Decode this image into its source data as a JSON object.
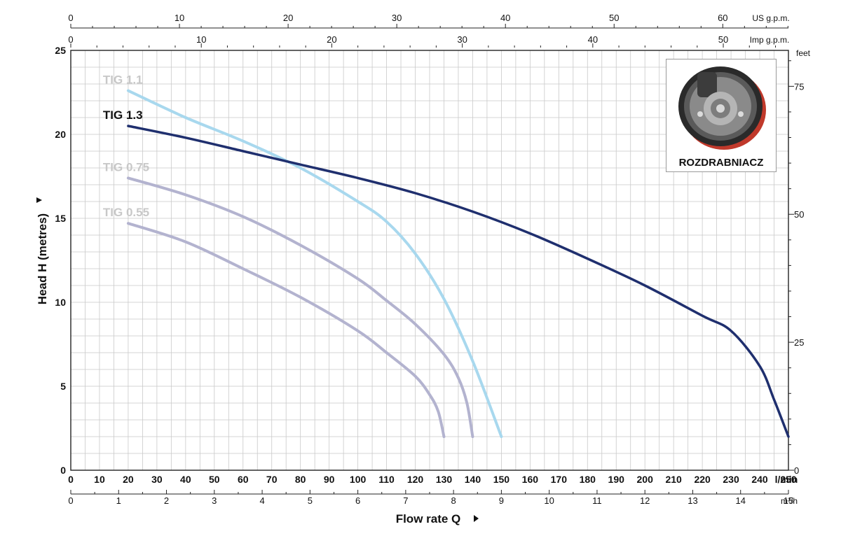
{
  "chart_data": {
    "type": "line",
    "title": "",
    "xlabel": "Flow rate Q",
    "ylabel": "Head H (metres)",
    "xlim": [
      0,
      250
    ],
    "ylim": [
      0,
      25
    ],
    "x_unit": "l/min",
    "x_ticks": [
      0,
      10,
      20,
      30,
      40,
      50,
      60,
      70,
      80,
      90,
      100,
      110,
      120,
      130,
      140,
      150,
      160,
      170,
      180,
      190,
      200,
      210,
      220,
      230,
      240,
      250
    ],
    "y_ticks": [
      0,
      5,
      10,
      15,
      20,
      25
    ],
    "secondary_axes": {
      "m3h": {
        "unit": "m³/h",
        "ticks": [
          0,
          1,
          2,
          3,
          4,
          5,
          6,
          7,
          8,
          9,
          10,
          11,
          12,
          13,
          14,
          15
        ]
      },
      "us_gpm": {
        "unit": "US g.p.m.",
        "ticks": [
          0,
          10,
          20,
          30,
          40,
          50,
          60
        ]
      },
      "imp_gpm": {
        "unit": "Imp g.p.m.",
        "ticks": [
          0,
          10,
          20,
          30,
          40,
          50
        ]
      },
      "feet": {
        "unit": "feet",
        "ticks": [
          0,
          25,
          50,
          75
        ]
      }
    },
    "grid": true,
    "series": [
      {
        "name": "TIG 1.1",
        "color": "#a8d8ee",
        "x": [
          20,
          40,
          60,
          80,
          100,
          110,
          120,
          130,
          140,
          150
        ],
        "y": [
          22.6,
          21.0,
          19.6,
          18.0,
          16.0,
          14.8,
          12.9,
          10.2,
          6.5,
          2.0
        ]
      },
      {
        "name": "TIG 1.3",
        "color": "#1f2f6e",
        "x": [
          20,
          40,
          60,
          80,
          100,
          120,
          140,
          160,
          180,
          200,
          220,
          230,
          240,
          245,
          250
        ],
        "y": [
          20.5,
          19.8,
          19.0,
          18.2,
          17.4,
          16.5,
          15.4,
          14.1,
          12.6,
          11.0,
          9.2,
          8.3,
          6.2,
          4.2,
          2.0
        ]
      },
      {
        "name": "TIG 0.75",
        "color": "#b3b3cf",
        "x": [
          20,
          40,
          60,
          80,
          100,
          110,
          120,
          130,
          135,
          138,
          140
        ],
        "y": [
          17.4,
          16.4,
          15.1,
          13.4,
          11.4,
          10.1,
          8.7,
          6.9,
          5.5,
          4.0,
          2.0
        ]
      },
      {
        "name": "TIG 0.55",
        "color": "#b3b3cf",
        "x": [
          20,
          40,
          60,
          80,
          100,
          110,
          120,
          125,
          128,
          130
        ],
        "y": [
          14.7,
          13.6,
          12.0,
          10.3,
          8.3,
          7.0,
          5.6,
          4.5,
          3.5,
          2.0
        ]
      }
    ],
    "series_label_colors": [
      "#c8c8c8",
      "#111111",
      "#c8c8c8",
      "#c8c8c8"
    ]
  },
  "inset": {
    "caption": "ROZDRABNIACZ"
  }
}
